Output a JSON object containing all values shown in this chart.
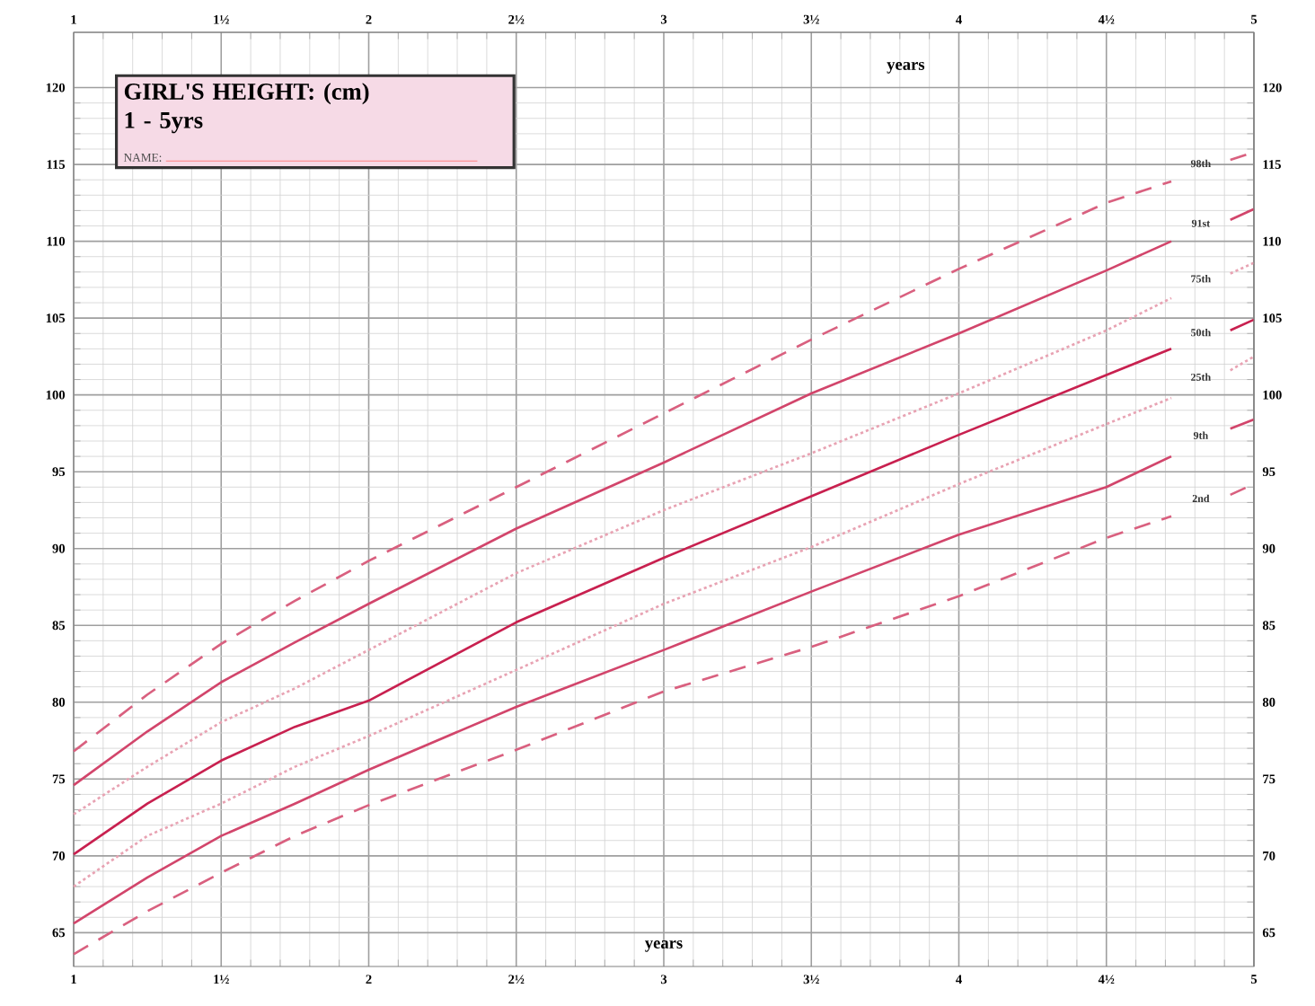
{
  "chart_data": {
    "type": "line",
    "title": "GIRL'S HEIGHT: (cm)",
    "subtitle": "1 - 5yrs",
    "annotations": [
      "NAME:"
    ],
    "xlabel": "years",
    "x2label": "years",
    "x": [
      1,
      1.25,
      1.5,
      1.75,
      2,
      2.5,
      3,
      3.5,
      4,
      4.5,
      4.72,
      4.82,
      4.92,
      5
    ],
    "series": [
      {
        "name": "98th",
        "color": "#d9607f",
        "line_style": "dashed",
        "values": [
          76.8,
          80.5,
          83.8,
          86.6,
          89.2,
          94.0,
          98.8,
          103.6,
          108.2,
          112.5,
          113.9,
          null,
          115.3,
          115.8
        ]
      },
      {
        "name": "91st",
        "color": "#d2456b",
        "line_style": "solid",
        "values": [
          74.6,
          78.1,
          81.3,
          83.9,
          86.4,
          91.3,
          95.6,
          100.1,
          104.0,
          108.1,
          110.0,
          null,
          111.4,
          112.1
        ]
      },
      {
        "name": "75th",
        "color": "#e8a3b3",
        "line_style": "dotted",
        "values": [
          72.7,
          75.8,
          78.7,
          80.9,
          83.4,
          88.4,
          92.5,
          96.2,
          100.1,
          104.2,
          106.3,
          null,
          107.9,
          108.6
        ]
      },
      {
        "name": "50th",
        "color": "#c8204f",
        "line_style": "solid",
        "values": [
          70.1,
          73.4,
          76.2,
          78.4,
          80.1,
          85.2,
          89.4,
          93.4,
          97.4,
          101.3,
          103.0,
          null,
          104.2,
          104.9
        ]
      },
      {
        "name": "25th",
        "color": "#e8a3b3",
        "line_style": "dotted",
        "values": [
          68.0,
          71.3,
          73.4,
          75.8,
          77.8,
          82.1,
          86.4,
          90.1,
          94.2,
          98.1,
          99.8,
          null,
          101.6,
          102.5
        ]
      },
      {
        "name": "9th",
        "color": "#d2456b",
        "line_style": "solid",
        "values": [
          65.6,
          68.6,
          71.3,
          73.4,
          75.6,
          79.7,
          83.4,
          87.2,
          90.9,
          94.0,
          96.0,
          null,
          97.8,
          98.4
        ]
      },
      {
        "name": "2nd",
        "color": "#d9607f",
        "line_style": "dashed",
        "values": [
          63.6,
          66.4,
          68.9,
          71.3,
          73.3,
          76.9,
          80.7,
          83.6,
          86.9,
          90.7,
          92.1,
          null,
          93.5,
          94.2
        ]
      }
    ],
    "marker": "none",
    "grid": true,
    "xlim": [
      1,
      5
    ],
    "ylim": [
      62.8,
      123.6
    ],
    "xticks": [
      1,
      {
        "value": 1.5,
        "label": "1½"
      },
      2,
      {
        "value": 2.5,
        "label": "2½"
      },
      3,
      {
        "value": 3.5,
        "label": "3½"
      },
      4,
      {
        "value": 4.5,
        "label": "4½"
      },
      5
    ],
    "yticks": [
      65,
      70,
      75,
      80,
      85,
      90,
      95,
      100,
      105,
      110,
      115,
      120
    ],
    "x2lim": [
      1,
      5
    ],
    "x2ticks": [
      1,
      {
        "value": 1.5,
        "label": "1½"
      },
      2,
      {
        "value": 2.5,
        "label": "2½"
      },
      3,
      {
        "value": 3.5,
        "label": "3½"
      },
      4,
      {
        "value": 4.5,
        "label": "4½"
      },
      5
    ],
    "y2lim": [
      62.8,
      123.6
    ],
    "y2ticks": [
      65,
      70,
      75,
      80,
      85,
      90,
      95,
      100,
      105,
      110,
      115,
      120
    ]
  }
}
